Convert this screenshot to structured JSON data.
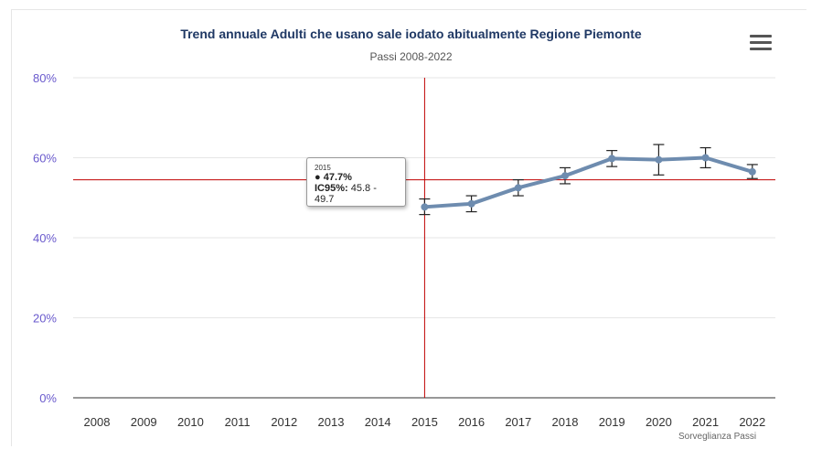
{
  "chart_data": {
    "type": "line",
    "title": "Trend annuale Adulti che usano sale iodato abitualmente Regione Piemonte",
    "subtitle": "Passi 2008-2022",
    "categories": [
      "2008",
      "2009",
      "2010",
      "2011",
      "2012",
      "2013",
      "2014",
      "2015",
      "2016",
      "2017",
      "2018",
      "2019",
      "2020",
      "2021",
      "2022"
    ],
    "y_ticks": [
      "0%",
      "20%",
      "40%",
      "60%",
      "80%"
    ],
    "ylim": [
      0,
      80
    ],
    "grid": true,
    "series": [
      {
        "values": [
          null,
          null,
          null,
          null,
          null,
          null,
          null,
          47.7,
          48.5,
          52.5,
          55.5,
          59.8,
          59.5,
          60.0,
          56.5
        ],
        "ci_low": [
          null,
          null,
          null,
          null,
          null,
          null,
          null,
          45.8,
          46.5,
          50.5,
          53.5,
          57.8,
          55.7,
          57.5,
          54.8
        ],
        "ci_high": [
          null,
          null,
          null,
          null,
          null,
          null,
          null,
          49.7,
          50.5,
          54.5,
          57.5,
          61.8,
          63.3,
          62.5,
          58.3
        ],
        "color": "#6e8caf"
      }
    ],
    "crosshair": {
      "x_category": "2015",
      "y_value": 54.5,
      "color": "#c00000"
    },
    "tooltip": {
      "year": "2015",
      "value_text": "47.7%",
      "ci_label": "IC95%:",
      "ci_text": "45.8 - 49.7"
    },
    "credits": "Sorveglianza Passi",
    "axis_label_color": "#6a5acd",
    "title_color": "#1f3864"
  },
  "menu": {
    "icon": "hamburger-menu-icon"
  }
}
